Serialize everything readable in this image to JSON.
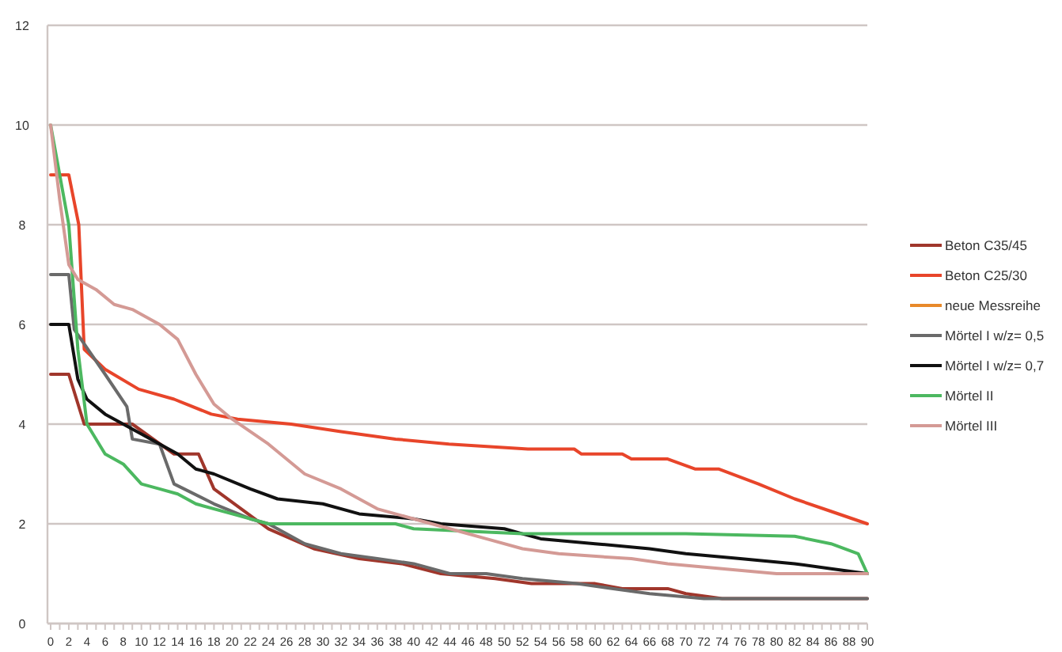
{
  "chart_data": {
    "type": "line",
    "ylim": [
      0,
      12
    ],
    "yticks": [
      0,
      2,
      4,
      6,
      8,
      10,
      12
    ],
    "xlim": [
      0,
      90
    ],
    "xticks": [
      0,
      {
        "value": 1,
        "label": null
      },
      2,
      {
        "value": 3,
        "label": null
      },
      4,
      {
        "value": 5,
        "label": null
      },
      6,
      {
        "value": 7,
        "label": null
      },
      8,
      {
        "value": 9,
        "label": null
      },
      10,
      {
        "value": 11,
        "label": null
      },
      12,
      {
        "value": 13,
        "label": null
      },
      14,
      {
        "value": 15,
        "label": null
      },
      16,
      {
        "value": 17,
        "label": null
      },
      18,
      {
        "value": 19,
        "label": null
      },
      20,
      {
        "value": 21,
        "label": null
      },
      22,
      {
        "value": 23,
        "label": null
      },
      24,
      {
        "value": 25,
        "label": null
      },
      26,
      {
        "value": 27,
        "label": null
      },
      28,
      {
        "value": 29,
        "label": null
      },
      30,
      {
        "value": 31,
        "label": null
      },
      32,
      {
        "value": 33,
        "label": null
      },
      34,
      {
        "value": 35,
        "label": null
      },
      36,
      {
        "value": 37,
        "label": null
      },
      38,
      {
        "value": 39,
        "label": null
      },
      40,
      {
        "value": 41,
        "label": null
      },
      42,
      {
        "value": 43,
        "label": null
      },
      44,
      {
        "value": 45,
        "label": null
      },
      46,
      {
        "value": 47,
        "label": null
      },
      48,
      {
        "value": 49,
        "label": null
      },
      50,
      {
        "value": 51,
        "label": null
      },
      52,
      {
        "value": 53,
        "label": null
      },
      54,
      {
        "value": 55,
        "label": null
      },
      56,
      {
        "value": 57,
        "label": null
      },
      58,
      {
        "value": 59,
        "label": null
      },
      60,
      {
        "value": 61,
        "label": null
      },
      62,
      {
        "value": 63,
        "label": null
      },
      64,
      {
        "value": 65,
        "label": null
      },
      66,
      {
        "value": 67,
        "label": null
      },
      68,
      {
        "value": 69,
        "label": null
      },
      70,
      {
        "value": 71,
        "label": null
      },
      72,
      {
        "value": 73,
        "label": null
      },
      74,
      {
        "value": 75,
        "label": null
      },
      76,
      {
        "value": 77,
        "label": null
      },
      78,
      {
        "value": 79,
        "label": null
      },
      80,
      {
        "value": 81,
        "label": null
      },
      82,
      {
        "value": 83,
        "label": null
      },
      84,
      {
        "value": 85,
        "label": null
      },
      86,
      {
        "value": 87,
        "label": null
      },
      88,
      {
        "value": 89,
        "label": null
      },
      90
    ],
    "grid": "y",
    "legend": "right",
    "marker": "none",
    "line_style": "solid",
    "series": [
      {
        "name": "Beton C35/45",
        "color": "#a0362b",
        "x": [
          0,
          2,
          3.7,
          9,
          13.6,
          16.3,
          18,
          24,
          29,
          34,
          38.7,
          43,
          49,
          53,
          60,
          63,
          68,
          70,
          74,
          90
        ],
        "values": [
          5,
          5,
          4,
          4,
          3.4,
          3.4,
          2.7,
          1.9,
          1.5,
          1.3,
          1.2,
          1,
          0.9,
          0.8,
          0.8,
          0.7,
          0.7,
          0.6,
          0.5,
          0.5
        ]
      },
      {
        "name": "Beton C25/30",
        "color": "#e8452a",
        "x": [
          0,
          2,
          3.1,
          3.7,
          6,
          9.7,
          13.6,
          17.7,
          20.6,
          26.5,
          32,
          38,
          43.9,
          52.6,
          57.7,
          58.5,
          63,
          64,
          68,
          71,
          73.6,
          78,
          82,
          86,
          90
        ],
        "values": [
          9,
          9,
          8,
          5.5,
          5.1,
          4.7,
          4.5,
          4.2,
          4.1,
          4,
          3.85,
          3.7,
          3.6,
          3.5,
          3.5,
          3.4,
          3.4,
          3.3,
          3.3,
          3.1,
          3.1,
          2.8,
          2.5,
          2.25,
          2
        ]
      },
      {
        "name": "neue Messreihe",
        "color": "#e8892a"
      },
      {
        "name": "Mörtel I w/z= 0,5",
        "color": "#6a6a6a",
        "x": [
          0,
          2,
          2.6,
          6,
          8.4,
          9,
          12,
          13.6,
          18,
          22,
          24,
          28,
          32,
          36,
          40,
          44,
          48,
          52,
          58,
          62,
          66,
          72,
          90
        ],
        "values": [
          7,
          7,
          5.9,
          5,
          4.35,
          3.7,
          3.6,
          2.8,
          2.4,
          2.1,
          2,
          1.6,
          1.4,
          1.3,
          1.2,
          1,
          1,
          0.9,
          0.8,
          0.7,
          0.6,
          0.5,
          0.5
        ]
      },
      {
        "name": "Mörtel I w/z= 0,7",
        "color": "#111111",
        "x": [
          0,
          2,
          3,
          4,
          6,
          8,
          10,
          14,
          16,
          18,
          22,
          25,
          30,
          34,
          40,
          43,
          50,
          52,
          54,
          60,
          66,
          70,
          76,
          82,
          86,
          90
        ],
        "values": [
          6,
          6,
          4.9,
          4.5,
          4.2,
          4,
          3.8,
          3.4,
          3.1,
          3,
          2.7,
          2.5,
          2.4,
          2.2,
          2.1,
          2,
          1.9,
          1.8,
          1.7,
          1.6,
          1.5,
          1.4,
          1.3,
          1.2,
          1.1,
          1
        ]
      },
      {
        "name": "Mörtel II",
        "color": "#4cb860",
        "x": [
          0,
          2,
          3,
          4,
          6,
          8,
          10,
          12,
          14,
          16,
          20,
          24,
          38,
          40,
          52,
          70,
          82,
          86,
          89,
          90
        ],
        "values": [
          10,
          8,
          5.5,
          4,
          3.4,
          3.2,
          2.8,
          2.7,
          2.6,
          2.4,
          2.2,
          2,
          2,
          1.9,
          1.8,
          1.8,
          1.75,
          1.6,
          1.4,
          1
        ]
      },
      {
        "name": "Mörtel III",
        "color": "#d49a95",
        "x": [
          0,
          1,
          2,
          3,
          5,
          7,
          9,
          12,
          14,
          16,
          18,
          20,
          24,
          28,
          32,
          36,
          40,
          44,
          48,
          52,
          56,
          64,
          68,
          74,
          80,
          90
        ],
        "values": [
          10,
          8.5,
          7.2,
          6.9,
          6.7,
          6.4,
          6.3,
          6,
          5.7,
          5,
          4.4,
          4.1,
          3.6,
          3,
          2.7,
          2.3,
          2.1,
          1.9,
          1.7,
          1.5,
          1.4,
          1.3,
          1.2,
          1.1,
          1,
          1
        ]
      }
    ]
  }
}
